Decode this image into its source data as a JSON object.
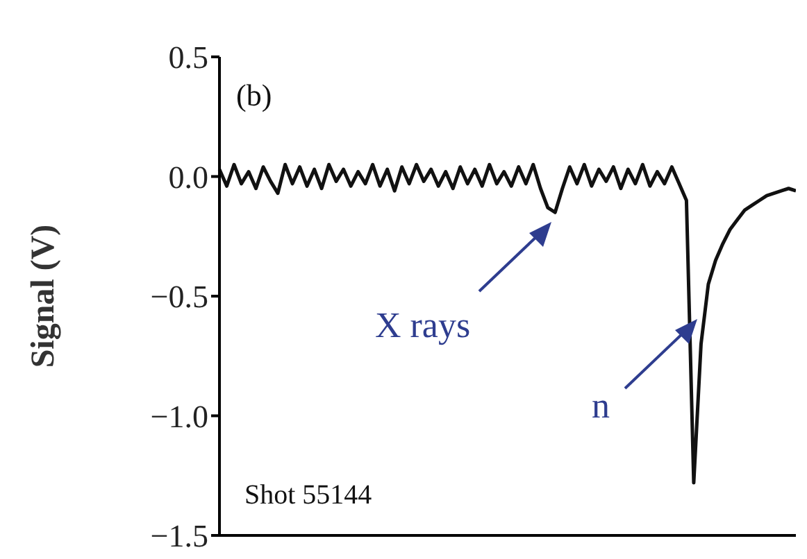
{
  "chart_data": {
    "type": "line",
    "ylabel": "Signal (V)",
    "annotations": [
      "(b)",
      "X rays",
      "n",
      "Shot 55144"
    ],
    "categories": [
      null,
      null,
      null,
      null,
      null,
      null,
      null,
      null,
      null,
      null,
      null,
      null,
      null,
      null,
      null,
      null,
      null,
      null,
      null,
      null,
      null,
      null,
      null,
      null,
      null,
      null,
      null,
      null,
      null,
      null,
      null,
      null,
      null,
      null,
      null,
      null,
      null,
      null,
      null,
      null,
      null,
      null,
      null,
      null,
      null,
      null,
      null,
      null,
      null,
      null,
      null,
      null,
      null,
      null,
      null,
      null,
      null,
      null,
      null,
      null,
      null,
      null,
      null,
      null,
      null,
      null,
      null,
      null,
      null,
      null,
      null,
      null,
      null,
      null,
      null,
      null,
      null,
      null,
      null,
      null
    ],
    "series": [
      {
        "color": "#111111",
        "values": [
          0.03,
          -0.04,
          0.05,
          -0.03,
          0.02,
          -0.05,
          0.04,
          -0.02,
          -0.07,
          0.05,
          -0.03,
          0.04,
          -0.04,
          0.03,
          -0.05,
          0.05,
          -0.02,
          0.03,
          -0.04,
          0.02,
          -0.03,
          0.05,
          -0.04,
          0.03,
          -0.06,
          0.04,
          -0.03,
          0.05,
          -0.02,
          0.03,
          -0.04,
          0.02,
          -0.05,
          0.04,
          -0.03,
          0.03,
          -0.04,
          0.05,
          -0.03,
          0.02,
          -0.04,
          0.04,
          -0.03,
          0.05,
          -0.05,
          -0.13,
          -0.15,
          -0.05,
          0.04,
          -0.03,
          0.05,
          -0.04,
          0.03,
          -0.02,
          0.04,
          -0.05,
          0.03,
          -0.03,
          0.05,
          -0.04,
          0.02,
          -0.03,
          0.04,
          -0.03,
          -0.1,
          -1.28,
          -0.7,
          -0.45,
          -0.35,
          -0.28,
          -0.22,
          -0.18,
          -0.14,
          -0.12,
          -0.1,
          -0.08,
          -0.07,
          -0.06,
          -0.05,
          -0.06
        ]
      }
    ],
    "ylim": [
      -1.5,
      0.5
    ],
    "yticks": [
      {
        "value": 0.5,
        "label": "0.5"
      },
      {
        "value": 0,
        "label": "0.0"
      },
      {
        "value": -0.5,
        "label": "−0.5"
      },
      {
        "value": -1,
        "label": "−1.0"
      },
      {
        "value": -1.5,
        "label": "−1.5"
      }
    ],
    "tick_labels": "y",
    "marker": "none",
    "line_style": "solid"
  }
}
